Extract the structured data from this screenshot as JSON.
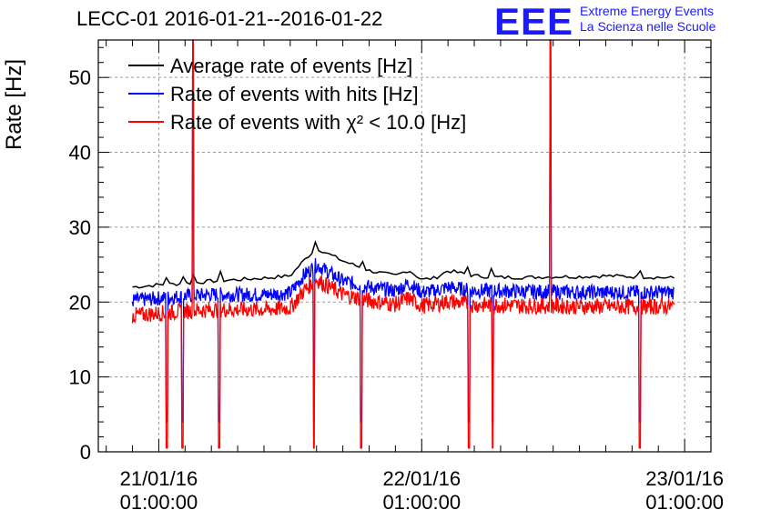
{
  "title": "LECC-01 2016-01-21--2016-01-22",
  "logo": {
    "mark": "EEE",
    "line1": "Extreme Energy Events",
    "line2": "La Scienza nelle Scuole"
  },
  "colors": {
    "average": "#000000",
    "hits": "#0000ff",
    "chi2": "#ff0000",
    "grid": "#9a9a9a",
    "logo": "#1a1aff"
  },
  "chart_data": {
    "type": "line",
    "title": "LECC-01 2016-01-21--2016-01-22",
    "xlabel": "",
    "ylabel": "Rate [Hz]",
    "ylim": [
      0,
      55
    ],
    "xlim_days": [
      -0.23,
      2.1
    ],
    "y_ticks": [
      0,
      10,
      20,
      30,
      40,
      50
    ],
    "x_ticks": [
      {
        "day": 0,
        "line1": "21/01/16",
        "line2": "01:00:00"
      },
      {
        "day": 1,
        "line1": "22/01/16",
        "line2": "01:00:00"
      },
      {
        "day": 2,
        "line1": "23/01/16",
        "line2": "01:00:00"
      }
    ],
    "grid": true,
    "legend_position": "top-left",
    "series": [
      {
        "name": "Average rate of events [Hz]",
        "x_days": [
          -0.1,
          0.0,
          0.1,
          0.2,
          0.3,
          0.4,
          0.5,
          0.55,
          0.6,
          0.7,
          0.8,
          0.9,
          0.95,
          1.0,
          1.05,
          1.1,
          1.2,
          1.3,
          1.4,
          1.5,
          1.6,
          1.7,
          1.8,
          1.9,
          1.96
        ],
        "values": [
          22.0,
          22.3,
          22.5,
          22.8,
          23.0,
          23.2,
          23.5,
          25.5,
          27.2,
          25.5,
          24.2,
          23.5,
          24.3,
          23.0,
          23.2,
          24.2,
          23.5,
          23.3,
          23.3,
          23.4,
          23.4,
          23.5,
          23.4,
          23.3,
          23.2
        ]
      },
      {
        "name": "Rate of events with hits [Hz]",
        "x_days": [
          -0.1,
          0.0,
          0.1,
          0.2,
          0.3,
          0.4,
          0.5,
          0.55,
          0.6,
          0.7,
          0.8,
          0.9,
          0.95,
          1.0,
          1.05,
          1.1,
          1.2,
          1.3,
          1.4,
          1.5,
          1.6,
          1.7,
          1.8,
          1.9,
          1.96
        ],
        "values": [
          20.2,
          20.5,
          20.8,
          21.0,
          21.0,
          21.0,
          21.2,
          23.5,
          25.0,
          22.8,
          22.0,
          21.5,
          22.5,
          21.3,
          21.5,
          22.0,
          21.5,
          21.5,
          21.4,
          21.4,
          21.3,
          21.3,
          21.3,
          21.3,
          21.3
        ]
      },
      {
        "name": "Rate of events with χ² < 10.0 [Hz]",
        "x_days": [
          -0.1,
          0.0,
          0.1,
          0.2,
          0.3,
          0.4,
          0.5,
          0.55,
          0.6,
          0.7,
          0.8,
          0.9,
          0.95,
          1.0,
          1.05,
          1.1,
          1.2,
          1.3,
          1.4,
          1.5,
          1.6,
          1.7,
          1.8,
          1.9,
          1.96
        ],
        "values": [
          18.2,
          18.5,
          18.8,
          19.0,
          19.0,
          19.0,
          19.2,
          21.5,
          23.0,
          21.0,
          20.2,
          19.7,
          20.5,
          19.5,
          19.7,
          20.1,
          19.6,
          19.6,
          19.5,
          19.5,
          19.4,
          19.4,
          19.4,
          19.4,
          19.4
        ]
      }
    ],
    "dips_days": [
      0.03,
      0.09,
      0.13,
      0.23,
      0.59,
      0.77,
      1.18,
      1.27,
      1.49,
      1.83
    ],
    "spikes_days": [
      0.13,
      1.49
    ]
  }
}
